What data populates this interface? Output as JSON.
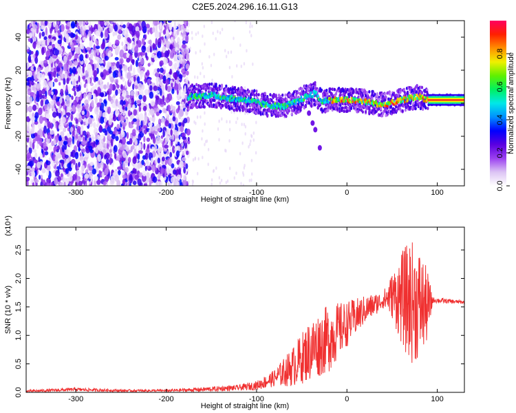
{
  "title": "C2E5.2024.296.16.11.G13",
  "chart_data": [
    {
      "type": "heatmap",
      "xlabel": "Height of straight line (km)",
      "ylabel": "Frequency (Hz)",
      "xlim": [
        -355,
        130
      ],
      "ylim": [
        -50,
        50
      ],
      "xticks": [
        -300,
        -200,
        -100,
        0,
        100
      ],
      "yticks": [
        -40,
        -20,
        0,
        20,
        40
      ],
      "colorbar": {
        "label": "Normalized spectral amplitude",
        "range": [
          0,
          1
        ],
        "ticks": [
          "0.0",
          "0.2",
          "0.4",
          "0.6",
          "0.8"
        ],
        "colors": [
          "#ffffff",
          "#dcc4f4",
          "#9b40f0",
          "#5a00e0",
          "#0000ff",
          "#0090ff",
          "#00e8e8",
          "#00f060",
          "#60f000",
          "#f0f000",
          "#ff9000",
          "#ff2000",
          "#ff0060"
        ]
      },
      "ridge": [
        {
          "x": -175,
          "y": 4
        },
        {
          "x": -150,
          "y": 5
        },
        {
          "x": -130,
          "y": 3
        },
        {
          "x": -110,
          "y": 2
        },
        {
          "x": -90,
          "y": -1
        },
        {
          "x": -70,
          "y": -2
        },
        {
          "x": -55,
          "y": 1
        },
        {
          "x": -45,
          "y": 4
        },
        {
          "x": -35,
          "y": 6
        },
        {
          "x": -28,
          "y": 1
        },
        {
          "x": -20,
          "y": 2
        },
        {
          "x": 0,
          "y": 2
        },
        {
          "x": 20,
          "y": 1
        },
        {
          "x": 40,
          "y": -1
        },
        {
          "x": 55,
          "y": 1
        },
        {
          "x": 70,
          "y": 3
        },
        {
          "x": 80,
          "y": 4
        },
        {
          "x": 90,
          "y": 2
        },
        {
          "x": 130,
          "y": 2
        }
      ],
      "side_branch": [
        {
          "x": -42,
          "y": -6
        },
        {
          "x": -38,
          "y": -12
        },
        {
          "x": -35,
          "y": -16
        },
        {
          "x": -30,
          "y": -27
        }
      ]
    },
    {
      "type": "line",
      "xlabel": "Height of straight line (km)",
      "ylabel": "SNR (10 * v/v)",
      "y_multiplier": "(x10⁴)",
      "xlim": [
        -355,
        130
      ],
      "ylim": [
        0,
        2.9
      ],
      "xticks": [
        -300,
        -200,
        -100,
        0,
        100
      ],
      "yticks": [
        "0.0",
        "0.5",
        "1.0",
        "1.5",
        "2.0",
        "2.5"
      ],
      "color": "#f03030",
      "envelope": [
        {
          "x": -355,
          "mean": 0.02,
          "amp": 0.02
        },
        {
          "x": -300,
          "mean": 0.05,
          "amp": 0.03
        },
        {
          "x": -250,
          "mean": 0.03,
          "amp": 0.02
        },
        {
          "x": -200,
          "mean": 0.03,
          "amp": 0.02
        },
        {
          "x": -160,
          "mean": 0.05,
          "amp": 0.04
        },
        {
          "x": -120,
          "mean": 0.08,
          "amp": 0.05
        },
        {
          "x": -100,
          "mean": 0.12,
          "amp": 0.08
        },
        {
          "x": -80,
          "mean": 0.25,
          "amp": 0.15
        },
        {
          "x": -60,
          "mean": 0.45,
          "amp": 0.35
        },
        {
          "x": -40,
          "mean": 0.75,
          "amp": 0.55
        },
        {
          "x": -20,
          "mean": 0.95,
          "amp": 0.6
        },
        {
          "x": 0,
          "mean": 1.2,
          "amp": 0.4
        },
        {
          "x": 20,
          "mean": 1.45,
          "amp": 0.25
        },
        {
          "x": 40,
          "mean": 1.62,
          "amp": 0.15
        },
        {
          "x": 50,
          "mean": 1.7,
          "amp": 0.4
        },
        {
          "x": 60,
          "mean": 1.65,
          "amp": 0.8
        },
        {
          "x": 70,
          "mean": 1.6,
          "amp": 1.1
        },
        {
          "x": 80,
          "mean": 1.55,
          "amp": 1.0
        },
        {
          "x": 90,
          "mean": 1.5,
          "amp": 0.6
        },
        {
          "x": 95,
          "mean": 1.62,
          "amp": 0.05
        },
        {
          "x": 130,
          "mean": 1.58,
          "amp": 0.03
        }
      ]
    }
  ]
}
